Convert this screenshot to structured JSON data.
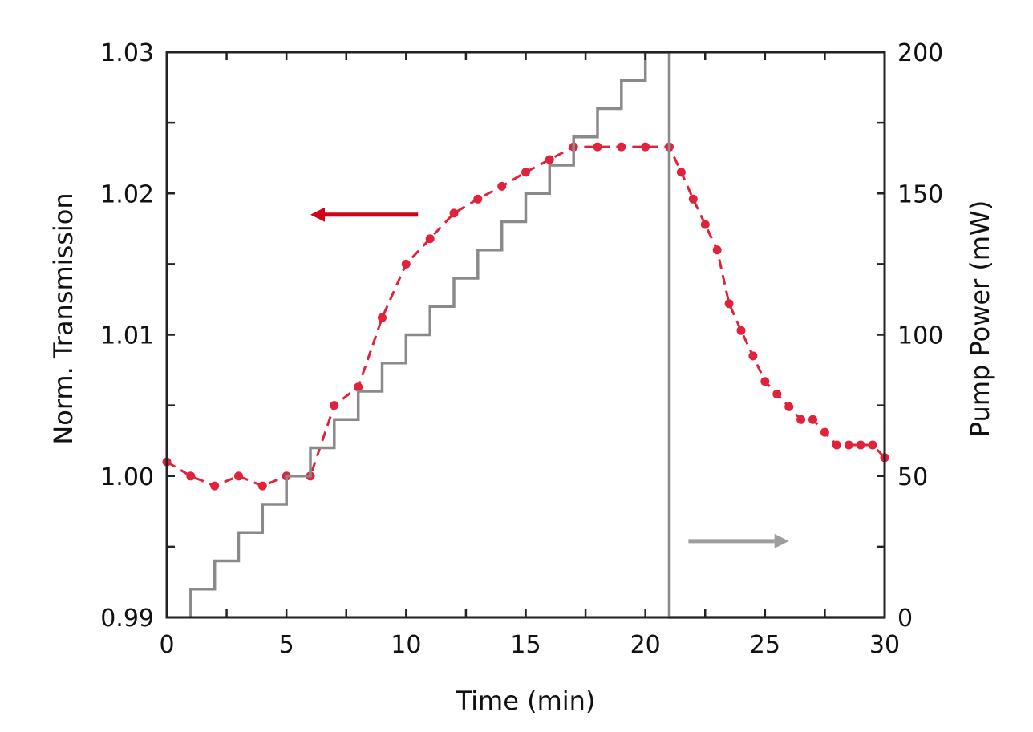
{
  "chart_data": {
    "type": "line",
    "title": "",
    "xlabel": "Time (min)",
    "ylabel_left": "Norm. Transmission",
    "ylabel_right": "Pump Power (mW)",
    "xlim": [
      0,
      30
    ],
    "ylim_left": [
      0.99,
      1.03
    ],
    "ylim_right": [
      0,
      200
    ],
    "x_ticks": [
      "0",
      "5",
      "10",
      "15",
      "20",
      "25",
      "30"
    ],
    "y_left_ticks": [
      "0.99",
      "1.00",
      "1.01",
      "1.02",
      "1.03"
    ],
    "y_right_ticks": [
      "0",
      "50",
      "100",
      "150",
      "200"
    ],
    "grid": false,
    "series": [
      {
        "axis": "left",
        "style": "dashed line with circle markers",
        "color": "#e0233a",
        "x": [
          0,
          1,
          2,
          3,
          4,
          5,
          6,
          7,
          8,
          9,
          10,
          11,
          12,
          13,
          14,
          15,
          16,
          17,
          18,
          19,
          20,
          21,
          21.5,
          22,
          22.5,
          23,
          23.5,
          24,
          24.5,
          25,
          25.5,
          26,
          26.5,
          27,
          27.5,
          28,
          28.5,
          29,
          29.5,
          30
        ],
        "y": [
          1.001,
          1.0,
          0.9993,
          1.0,
          0.9993,
          1.0,
          1.0,
          1.005,
          1.0063,
          1.0112,
          1.015,
          1.0168,
          1.0186,
          1.0196,
          1.0205,
          1.0215,
          1.0224,
          1.0233,
          1.0233,
          1.0233,
          1.0233,
          1.0233,
          1.0215,
          1.0196,
          1.0178,
          1.016,
          1.0122,
          1.0103,
          1.0085,
          1.0067,
          1.0058,
          1.0049,
          1.004,
          1.004,
          1.0031,
          1.0022,
          1.0022,
          1.0022,
          1.0022,
          1.0013
        ]
      },
      {
        "axis": "right",
        "style": "step line",
        "color": "#8a8a8a",
        "x": [
          1,
          1,
          2,
          2,
          3,
          3,
          4,
          4,
          5,
          5,
          6,
          6,
          7,
          7,
          8,
          8,
          9,
          9,
          10,
          10,
          11,
          11,
          12,
          12,
          13,
          13,
          14,
          14,
          15,
          15,
          16,
          16,
          17,
          17,
          18,
          18,
          19,
          19,
          20,
          20,
          21,
          21,
          30
        ],
        "y": [
          0,
          10,
          10,
          20,
          20,
          30,
          30,
          40,
          40,
          50,
          50,
          60,
          60,
          70,
          70,
          80,
          80,
          90,
          90,
          100,
          100,
          110,
          110,
          120,
          120,
          130,
          130,
          140,
          140,
          150,
          150,
          160,
          160,
          170,
          170,
          180,
          180,
          190,
          190,
          200,
          200,
          0,
          0
        ]
      }
    ],
    "annotations": [
      {
        "type": "arrow",
        "direction": "left",
        "color": "#d0021b",
        "x_from": 10.5,
        "x_to": 6,
        "y": 1.0185,
        "axis": "left",
        "meaning": "red series uses left axis"
      },
      {
        "type": "arrow",
        "direction": "right",
        "color": "#9e9e9e",
        "x_from": 21.8,
        "x_to": 26,
        "y": 27,
        "axis": "right",
        "meaning": "gray series uses right axis"
      }
    ]
  }
}
